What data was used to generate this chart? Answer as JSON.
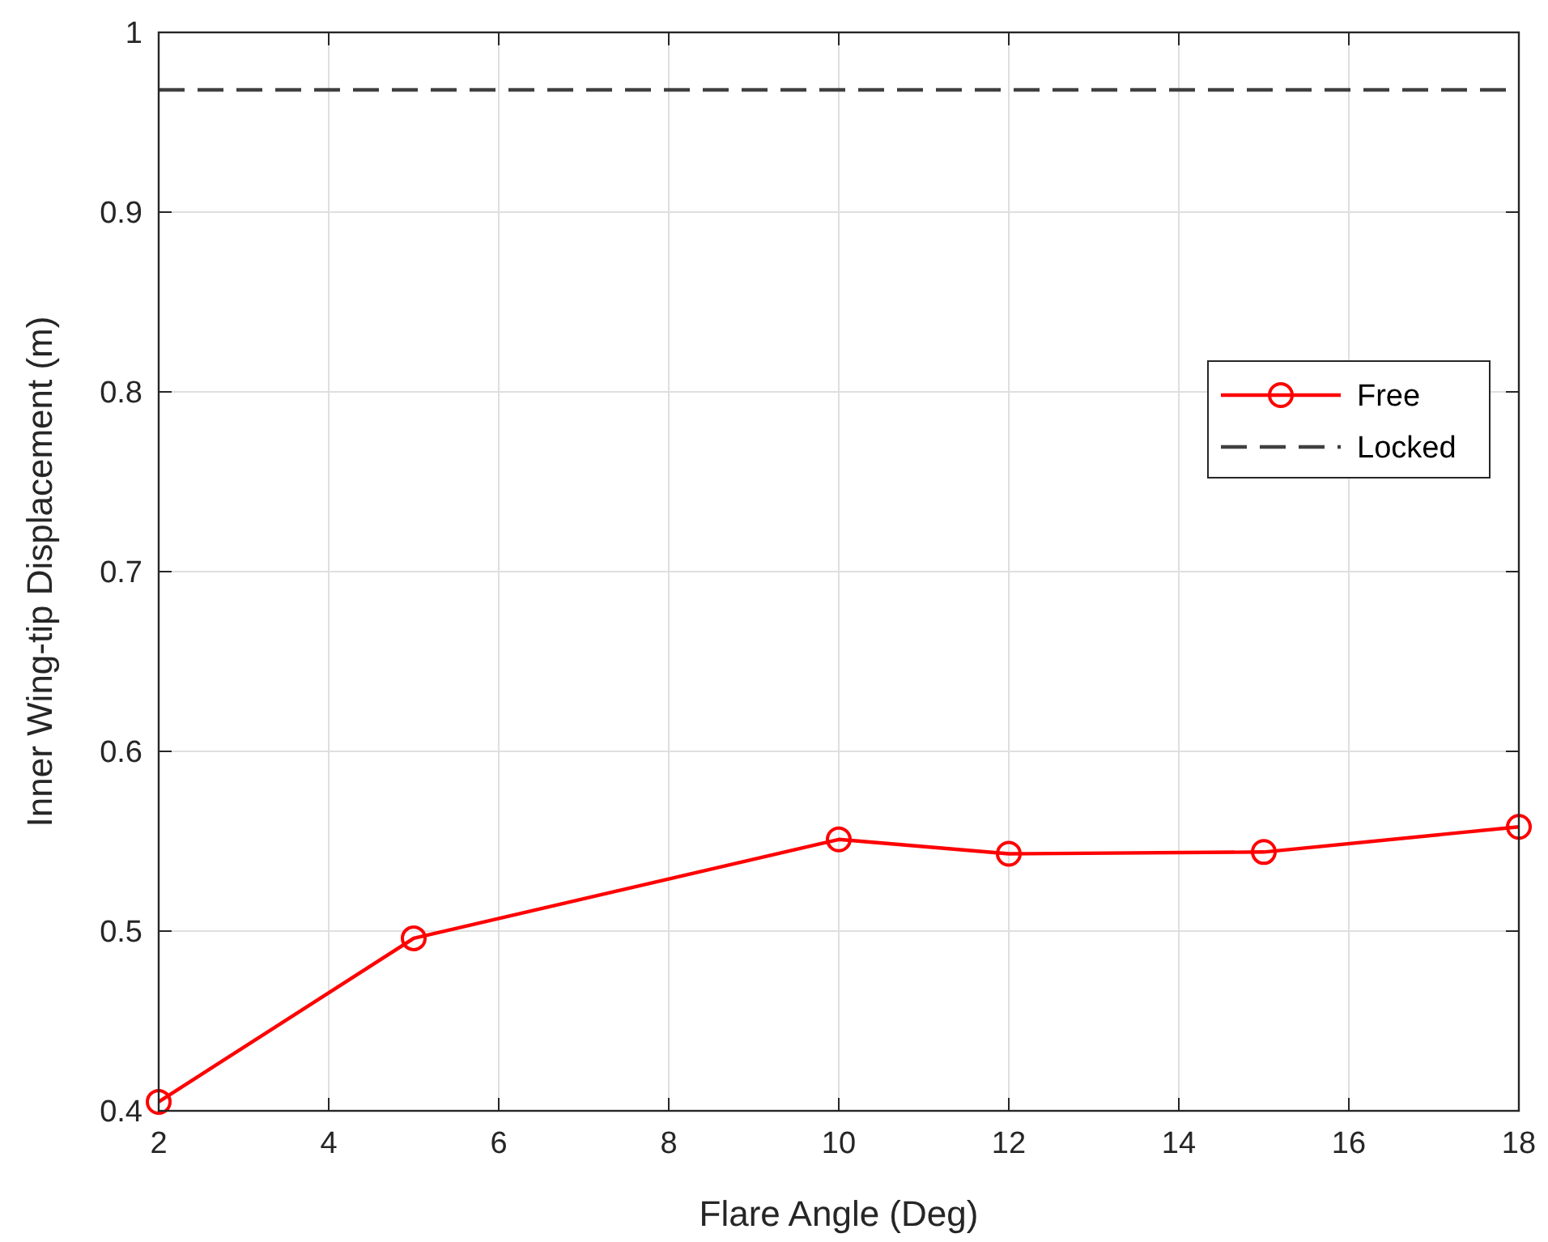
{
  "chart_data": {
    "type": "line",
    "xlabel": "Flare Angle (Deg)",
    "ylabel": "Inner Wing-tip Displacement (m)",
    "xlim": [
      2,
      18
    ],
    "xticks": [
      2,
      4,
      6,
      8,
      10,
      12,
      14,
      16,
      18
    ],
    "ylim": [
      0.4,
      1
    ],
    "yticks": [
      0.4,
      0.5,
      0.6,
      0.7,
      0.8,
      0.9,
      1
    ],
    "grid": true,
    "legend": "right",
    "series": [
      {
        "name": "Free",
        "color": "#ff0000",
        "x": [
          2,
          5,
          10,
          12,
          15,
          18
        ],
        "values": [
          0.405,
          0.496,
          0.551,
          0.543,
          0.544,
          0.558
        ],
        "marker": "circle",
        "line_style": "solid"
      },
      {
        "name": "Locked",
        "color": "#404040",
        "x": [
          2,
          18
        ],
        "values": [
          0.968,
          0.968
        ],
        "marker": "none",
        "line_style": "dashed"
      }
    ]
  }
}
